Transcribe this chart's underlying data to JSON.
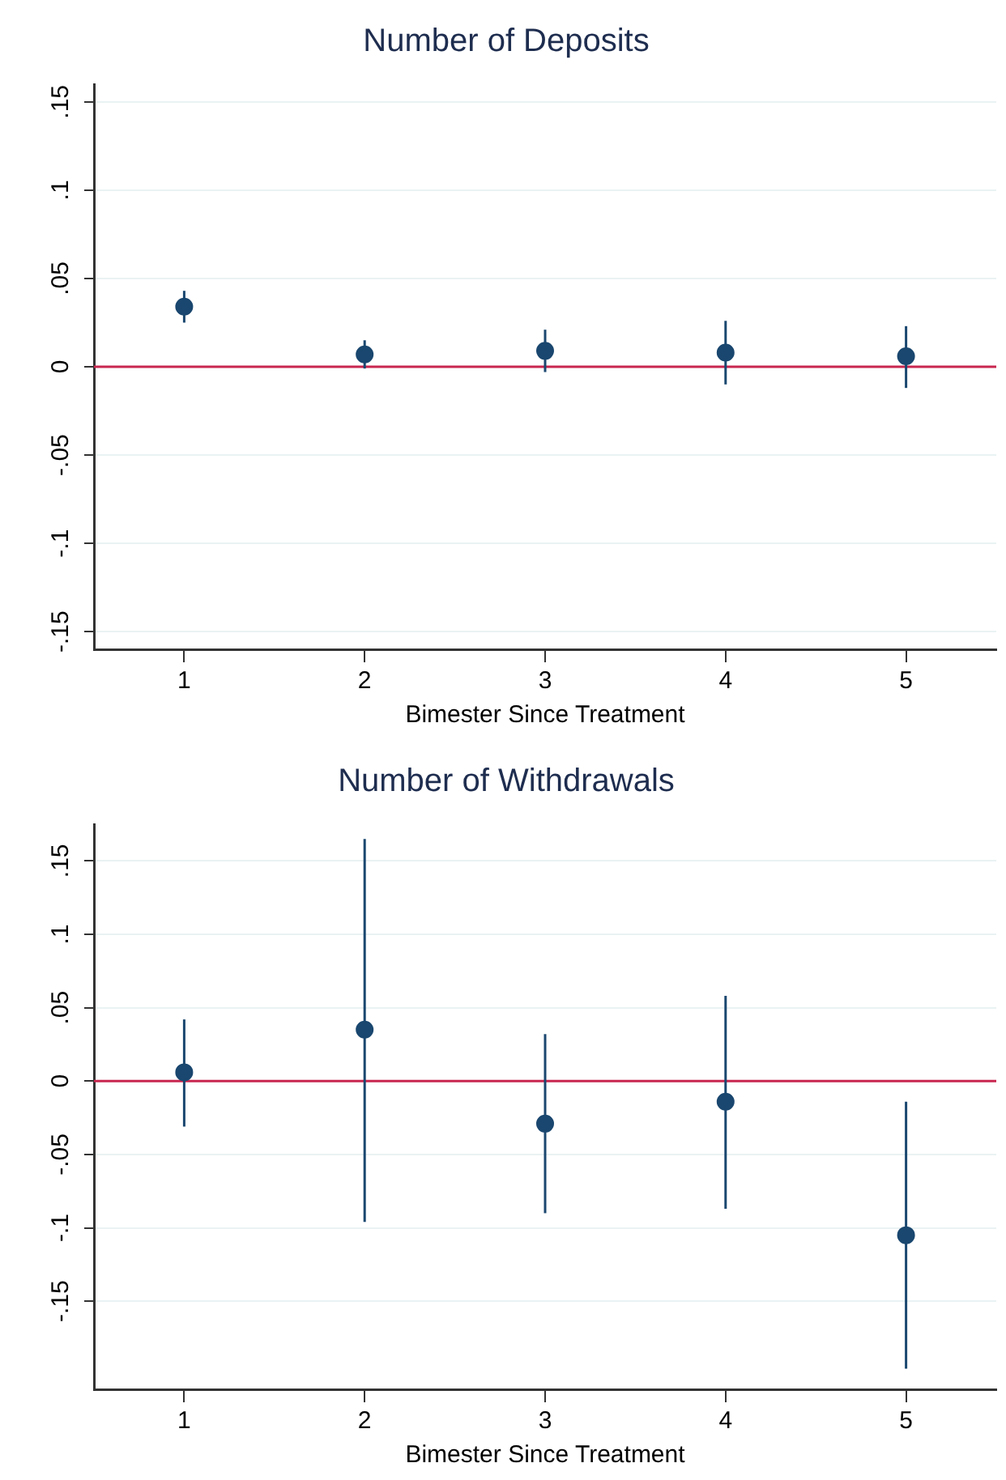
{
  "chart_data": [
    {
      "type": "scatter",
      "title": "Number of Deposits",
      "xlabel": "Bimester Since Treatment",
      "x": [
        1,
        2,
        3,
        4,
        5
      ],
      "xlim": [
        0.5,
        5.5
      ],
      "xticks": [
        1,
        2,
        3,
        4,
        5
      ],
      "ylim": [
        -0.16,
        0.16
      ],
      "yticks": [
        {
          "value": -0.15,
          "label": "-.15"
        },
        {
          "value": -0.1,
          "label": "-.1"
        },
        {
          "value": -0.05,
          "label": "-.05"
        },
        {
          "value": 0,
          "label": "0"
        },
        {
          "value": 0.05,
          "label": ".05"
        },
        {
          "value": 0.1,
          "label": ".1"
        },
        {
          "value": 0.15,
          "label": ".15"
        }
      ],
      "series": [
        {
          "color": "#1a476f",
          "values": [
            0.034,
            0.007,
            0.009,
            0.008,
            0.006
          ],
          "errors": [
            [
              0.025,
              0.043
            ],
            [
              -0.001,
              0.015
            ],
            [
              -0.003,
              0.021
            ],
            [
              -0.01,
              0.026
            ],
            [
              -0.012,
              0.023
            ]
          ]
        }
      ],
      "ref_lines": [
        {
          "axis": "y",
          "value": 0,
          "color": "#c8264f"
        }
      ],
      "grid": "y",
      "marker": "circle"
    },
    {
      "type": "scatter",
      "title": "Number of Withdrawals",
      "xlabel": "Bimester Since Treatment",
      "x": [
        1,
        2,
        3,
        4,
        5
      ],
      "xlim": [
        0.5,
        5.5
      ],
      "xticks": [
        1,
        2,
        3,
        4,
        5
      ],
      "ylim": [
        -0.21,
        0.175
      ],
      "yticks": [
        {
          "value": -0.15,
          "label": "-.15"
        },
        {
          "value": -0.1,
          "label": "-.1"
        },
        {
          "value": -0.05,
          "label": "-.05"
        },
        {
          "value": 0,
          "label": "0"
        },
        {
          "value": 0.05,
          "label": ".05"
        },
        {
          "value": 0.1,
          "label": ".1"
        },
        {
          "value": 0.15,
          "label": ".15"
        }
      ],
      "series": [
        {
          "color": "#1a476f",
          "values": [
            0.006,
            0.035,
            -0.029,
            -0.014,
            -0.105
          ],
          "errors": [
            [
              -0.031,
              0.042
            ],
            [
              -0.096,
              0.165
            ],
            [
              -0.09,
              0.032
            ],
            [
              -0.087,
              0.058
            ],
            [
              -0.196,
              -0.014
            ]
          ]
        }
      ],
      "ref_lines": [
        {
          "axis": "y",
          "value": 0,
          "color": "#c8264f"
        }
      ],
      "grid": "y",
      "marker": "circle"
    }
  ]
}
